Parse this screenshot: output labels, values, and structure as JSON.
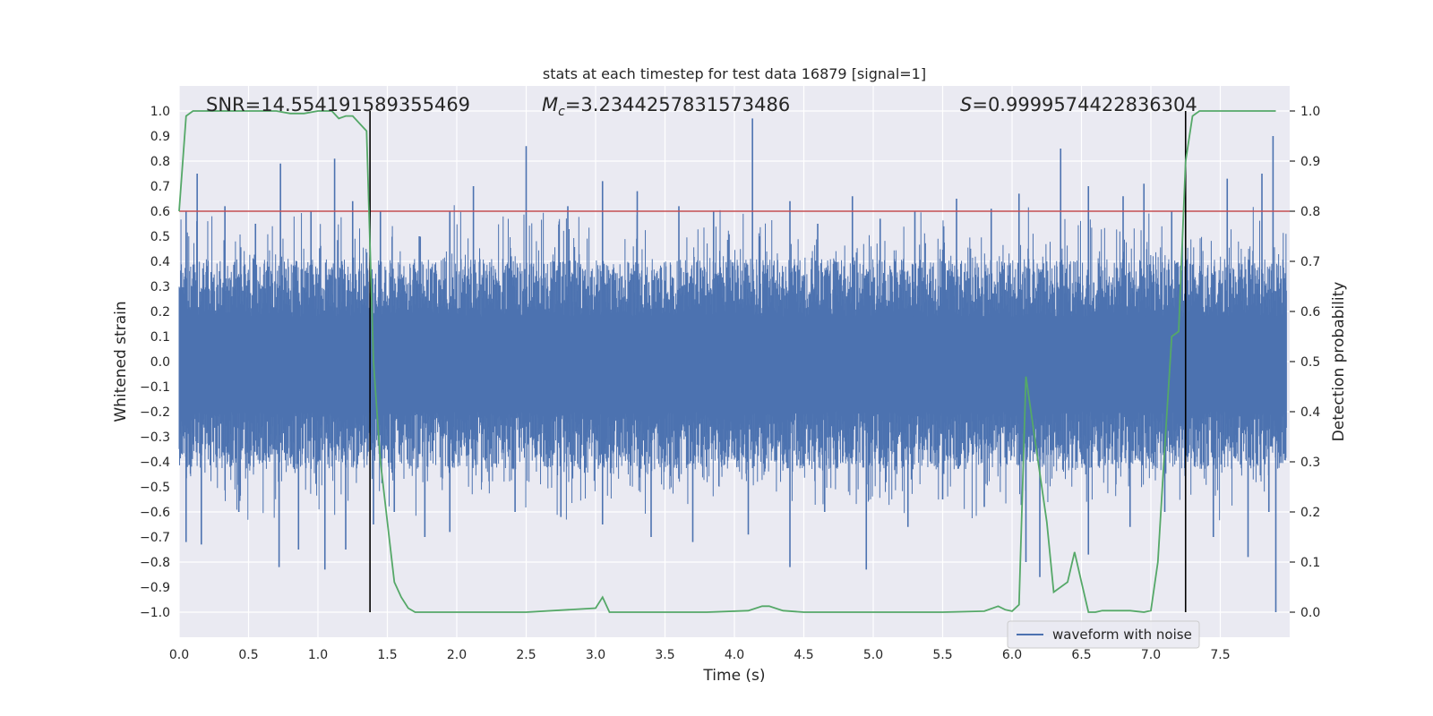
{
  "chart_data": {
    "type": "line",
    "title": "stats at each timestep for test data 16879 [signal=1]",
    "xlabel": "Time (s)",
    "ylabel_left": "Whitened strain",
    "ylabel_right": "Detection probability",
    "xlim": [
      0.0,
      8.0
    ],
    "ylim_left": [
      -1.1,
      1.1
    ],
    "ylim_right": [
      -0.05,
      1.05
    ],
    "xticks": [
      "0.0",
      "0.5",
      "1.0",
      "1.5",
      "2.0",
      "2.5",
      "3.0",
      "3.5",
      "4.0",
      "4.5",
      "5.0",
      "5.5",
      "6.0",
      "6.5",
      "7.0",
      "7.5"
    ],
    "xtick_values": [
      0.0,
      0.5,
      1.0,
      1.5,
      2.0,
      2.5,
      3.0,
      3.5,
      4.0,
      4.5,
      5.0,
      5.5,
      6.0,
      6.5,
      7.0,
      7.5
    ],
    "yticks_left": [
      "1.0",
      "0.9",
      "0.8",
      "0.7",
      "0.6",
      "0.5",
      "0.4",
      "0.3",
      "0.2",
      "0.1",
      "0.0",
      "−0.1",
      "−0.2",
      "−0.3",
      "−0.4",
      "−0.5",
      "−0.6",
      "−0.7",
      "−0.8",
      "−0.9",
      "−1.0"
    ],
    "yticks_left_values": [
      1.0,
      0.9,
      0.8,
      0.7,
      0.6,
      0.5,
      0.4,
      0.3,
      0.2,
      0.1,
      0.0,
      -0.1,
      -0.2,
      -0.3,
      -0.4,
      -0.5,
      -0.6,
      -0.7,
      -0.8,
      -0.9,
      -1.0
    ],
    "yticks_right": [
      "1.0",
      "0.9",
      "0.8",
      "0.7",
      "0.6",
      "0.5",
      "0.4",
      "0.3",
      "0.2",
      "0.1",
      "0.0"
    ],
    "yticks_right_values": [
      1.0,
      0.9,
      0.8,
      0.7,
      0.6,
      0.5,
      0.4,
      0.3,
      0.2,
      0.1,
      0.0
    ],
    "annotations": {
      "snr": "SNR=14.554191589355469",
      "mc_symbol": "M",
      "mc_sub": "c",
      "mc_value": "=3.2344257831573486",
      "s_symbol": "S",
      "s_value": "=0.9999574422836304"
    },
    "threshold": 0.8,
    "vlines": [
      1.375,
      7.25
    ],
    "waveform": {
      "name": "waveform with noise",
      "color": "#4c72b0",
      "band_upper": 0.38,
      "band_lower": -0.4,
      "dense_upper": 0.18,
      "dense_lower": -0.2,
      "peaks_up": [
        [
          0.05,
          0.6
        ],
        [
          0.13,
          0.75
        ],
        [
          0.33,
          0.62
        ],
        [
          0.55,
          0.55
        ],
        [
          0.73,
          0.79
        ],
        [
          0.95,
          0.6
        ],
        [
          1.12,
          0.81
        ],
        [
          1.25,
          0.64
        ],
        [
          1.45,
          0.6
        ],
        [
          1.73,
          0.5
        ],
        [
          1.95,
          0.6
        ],
        [
          2.12,
          0.7
        ],
        [
          2.5,
          0.86
        ],
        [
          2.8,
          0.62
        ],
        [
          3.05,
          0.72
        ],
        [
          3.3,
          0.68
        ],
        [
          3.6,
          0.62
        ],
        [
          3.85,
          0.6
        ],
        [
          4.13,
          0.97
        ],
        [
          4.4,
          0.64
        ],
        [
          4.6,
          0.55
        ],
        [
          4.85,
          0.66
        ],
        [
          5.05,
          0.57
        ],
        [
          5.3,
          0.6
        ],
        [
          5.6,
          0.65
        ],
        [
          5.85,
          0.61
        ],
        [
          6.05,
          0.67
        ],
        [
          6.35,
          0.85
        ],
        [
          6.55,
          0.7
        ],
        [
          6.8,
          0.66
        ],
        [
          6.95,
          0.71
        ],
        [
          7.15,
          0.6
        ],
        [
          7.55,
          0.73
        ],
        [
          7.8,
          0.75
        ],
        [
          7.88,
          0.9
        ]
      ],
      "peaks_down": [
        [
          0.05,
          -0.72
        ],
        [
          0.16,
          -0.73
        ],
        [
          0.43,
          -0.6
        ],
        [
          0.72,
          -0.82
        ],
        [
          0.86,
          -0.75
        ],
        [
          1.05,
          -0.83
        ],
        [
          1.2,
          -0.75
        ],
        [
          1.4,
          -0.65
        ],
        [
          1.55,
          -0.6
        ],
        [
          1.77,
          -0.7
        ],
        [
          1.95,
          -0.68
        ],
        [
          2.42,
          -0.6
        ],
        [
          2.75,
          -0.62
        ],
        [
          3.05,
          -0.65
        ],
        [
          3.4,
          -0.7
        ],
        [
          3.7,
          -0.72
        ],
        [
          4.1,
          -0.69
        ],
        [
          4.4,
          -0.82
        ],
        [
          4.65,
          -0.6
        ],
        [
          4.95,
          -0.83
        ],
        [
          5.25,
          -0.66
        ],
        [
          5.5,
          -0.55
        ],
        [
          5.8,
          -0.58
        ],
        [
          6.1,
          -0.8
        ],
        [
          6.2,
          -0.86
        ],
        [
          6.55,
          -0.77
        ],
        [
          6.85,
          -0.66
        ],
        [
          7.1,
          -0.6
        ],
        [
          7.45,
          -0.7
        ],
        [
          7.7,
          -0.78
        ],
        [
          7.85,
          -0.6
        ],
        [
          7.9,
          -1.0
        ]
      ]
    },
    "threshold_line": {
      "color": "#c44e52"
    },
    "probability": {
      "color": "#55a868",
      "x": [
        0.0,
        0.05,
        0.1,
        0.2,
        0.3,
        0.5,
        0.7,
        0.8,
        0.9,
        1.0,
        1.1,
        1.15,
        1.2,
        1.25,
        1.3,
        1.35,
        1.4,
        1.45,
        1.5,
        1.55,
        1.6,
        1.65,
        1.7,
        1.75,
        1.8,
        2.0,
        2.5,
        3.0,
        3.05,
        3.1,
        3.2,
        3.5,
        3.8,
        4.1,
        4.2,
        4.25,
        4.35,
        4.5,
        4.6,
        4.8,
        5.0,
        5.5,
        5.8,
        5.9,
        5.95,
        6.0,
        6.05,
        6.1,
        6.25,
        6.3,
        6.4,
        6.45,
        6.5,
        6.55,
        6.6,
        6.65,
        6.75,
        6.85,
        6.95,
        7.0,
        7.05,
        7.1,
        7.15,
        7.2,
        7.25,
        7.3,
        7.35,
        7.4,
        7.5,
        7.9
      ],
      "y": [
        0.8,
        0.99,
        1.0,
        1.0,
        1.0,
        1.0,
        1.0,
        0.995,
        0.995,
        1.0,
        1.0,
        0.985,
        0.99,
        0.99,
        0.975,
        0.96,
        0.5,
        0.3,
        0.18,
        0.06,
        0.03,
        0.008,
        0.0,
        0.0,
        0.0,
        0.0,
        0.0,
        0.008,
        0.03,
        0.0,
        0.0,
        0.0,
        0.0,
        0.003,
        0.012,
        0.012,
        0.003,
        0.0,
        0.0,
        0.0,
        0.0,
        0.0,
        0.002,
        0.012,
        0.005,
        0.002,
        0.015,
        0.47,
        0.18,
        0.04,
        0.06,
        0.12,
        0.06,
        0.0,
        0.0,
        0.003,
        0.003,
        0.003,
        0.0,
        0.003,
        0.1,
        0.33,
        0.55,
        0.56,
        0.9,
        0.99,
        1.0,
        1.0,
        1.0,
        1.0
      ]
    }
  },
  "legend": {
    "entry": "waveform with noise"
  }
}
